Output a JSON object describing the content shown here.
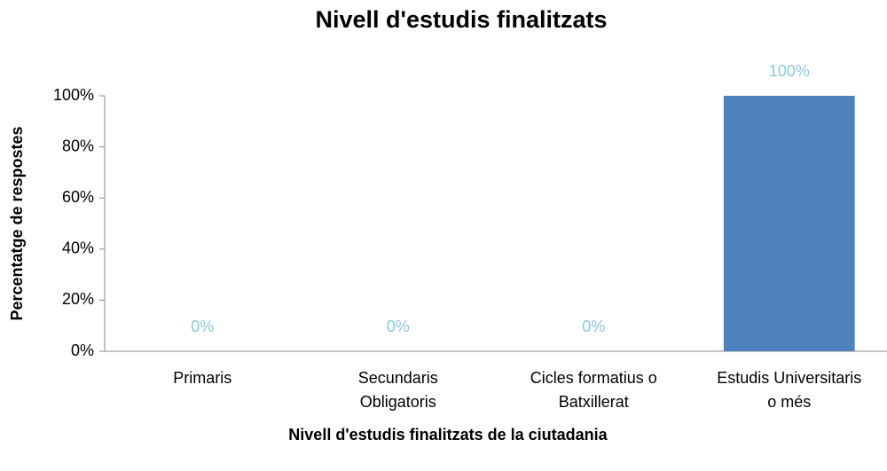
{
  "chart_data": {
    "type": "bar",
    "title": "Nivell d'estudis finalitzats",
    "x_label": "Nivell d'estudis finalitzats de la ciutadania",
    "y_label": "Percentatge de respostes",
    "categories": [
      "Primaris",
      "Secundaris Obligatoris",
      "Cicles formatius o Batxillerat",
      "Estudis Universitaris o més"
    ],
    "values": [
      0,
      0,
      0,
      100
    ],
    "value_labels": [
      "0%",
      "0%",
      "0%",
      "100%"
    ],
    "color": "#4f81bd",
    "label_color": "#8cc8dc",
    "ylim": [
      0,
      100
    ],
    "yticks": [
      {
        "value": 0,
        "label": "0%"
      },
      {
        "value": 20,
        "label": "20%"
      },
      {
        "value": 40,
        "label": "40%"
      },
      {
        "value": 60,
        "label": "60%"
      },
      {
        "value": 80,
        "label": "80%"
      },
      {
        "value": 100,
        "label": "100%"
      }
    ],
    "grid": false
  }
}
